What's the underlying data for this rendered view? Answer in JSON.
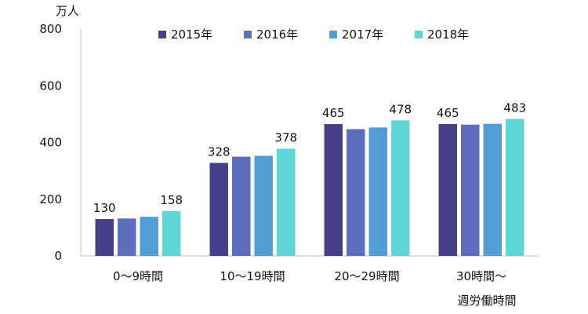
{
  "chart_data": {
    "type": "bar",
    "title": "",
    "unit_label": "万人",
    "xlabel": "週労働時間",
    "ylabel": "",
    "ylim": [
      0,
      800
    ],
    "yticks": [
      0,
      200,
      400,
      600,
      800
    ],
    "grid": false,
    "legend_position": "top-center",
    "categories": [
      "0～9時間",
      "10～19時間",
      "20～29時間",
      "30時間～"
    ],
    "series": [
      {
        "name": "2015年",
        "color": "#463f8a",
        "values": [
          130,
          328,
          465,
          465
        ]
      },
      {
        "name": "2016年",
        "color": "#5e6ebd",
        "values": [
          132,
          350,
          447,
          463
        ]
      },
      {
        "name": "2017年",
        "color": "#529dd3",
        "values": [
          138,
          353,
          453,
          466
        ]
      },
      {
        "name": "2018年",
        "color": "#5ed6d6",
        "values": [
          158,
          378,
          478,
          483
        ]
      }
    ],
    "data_labels": [
      {
        "category": 0,
        "series": 0,
        "text": "130"
      },
      {
        "category": 0,
        "series": 3,
        "text": "158"
      },
      {
        "category": 1,
        "series": 0,
        "text": "328"
      },
      {
        "category": 1,
        "series": 3,
        "text": "378"
      },
      {
        "category": 2,
        "series": 0,
        "text": "465"
      },
      {
        "category": 2,
        "series": 3,
        "text": "478"
      },
      {
        "category": 3,
        "series": 0,
        "text": "465"
      },
      {
        "category": 3,
        "series": 3,
        "text": "483"
      }
    ],
    "axis_color": "#bfbfbf"
  }
}
